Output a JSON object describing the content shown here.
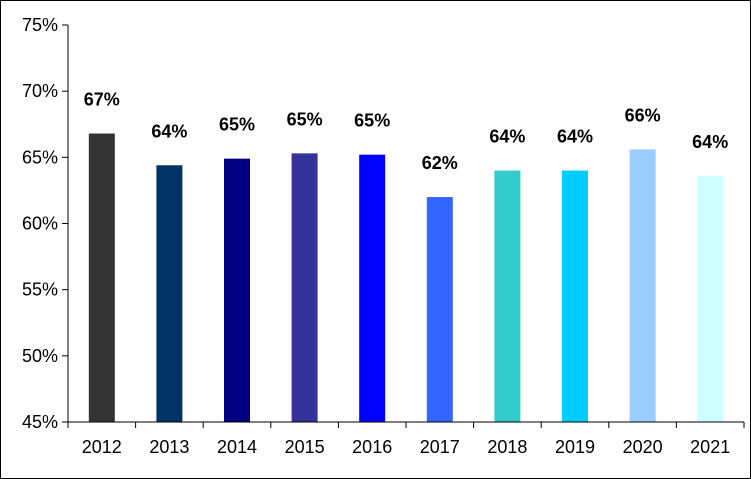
{
  "chart_data": {
    "type": "bar",
    "title": "",
    "xlabel": "",
    "ylabel": "",
    "categories": [
      "2012",
      "2013",
      "2014",
      "2015",
      "2016",
      "2017",
      "2018",
      "2019",
      "2020",
      "2021"
    ],
    "values": [
      66.8,
      64.4,
      64.9,
      65.3,
      65.2,
      62.0,
      64.0,
      64.0,
      65.6,
      63.6
    ],
    "data_labels": [
      "67%",
      "64%",
      "65%",
      "65%",
      "65%",
      "62%",
      "64%",
      "64%",
      "66%",
      "64%"
    ],
    "colors": [
      "#333333",
      "#003366",
      "#000080",
      "#333399",
      "#0000FF",
      "#3366FF",
      "#33CCCC",
      "#00CCFF",
      "#99CCFF",
      "#CCFFFF"
    ],
    "ylim": [
      45,
      75
    ],
    "yticks": [
      45,
      50,
      55,
      60,
      65,
      70,
      75
    ],
    "ytick_labels": [
      "45%",
      "50%",
      "55%",
      "60%",
      "65%",
      "70%",
      "75%"
    ],
    "grid": false,
    "legend": "none"
  }
}
